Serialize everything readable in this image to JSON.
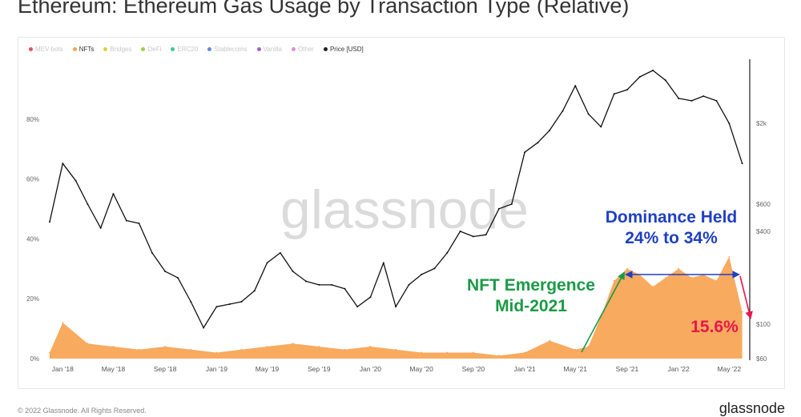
{
  "title": "Ethereum: Ethereum Gas Usage by Transaction Type (Relative)",
  "legend": [
    {
      "label": "MEV-bots",
      "color": "#e05560",
      "active": false
    },
    {
      "label": "NFTs",
      "color": "#f7a351",
      "active": true
    },
    {
      "label": "Bridges",
      "color": "#e8cc3c",
      "active": false
    },
    {
      "label": "DeFi",
      "color": "#9ad04a",
      "active": false
    },
    {
      "label": "ERC20",
      "color": "#3ec98a",
      "active": false
    },
    {
      "label": "Stablecoins",
      "color": "#5b8de0",
      "active": false
    },
    {
      "label": "Vanilla",
      "color": "#a55fd6",
      "active": false
    },
    {
      "label": "Other",
      "color": "#e58be0",
      "active": false
    },
    {
      "label": "Price [USD]",
      "color": "#222222",
      "active": true
    }
  ],
  "watermark": "glassnode",
  "annotations": {
    "emergence_line1": "NFT Emergence",
    "emergence_line2": "Mid-2021",
    "dominance_line1": "Dominance Held",
    "dominance_line2": "24% to 34%",
    "drop_value": "15.6%"
  },
  "colors": {
    "nft_fill": "#f7a351",
    "price_line": "#111111",
    "emergence_green": "#1a9a45",
    "dominance_blue": "#1f3fc4",
    "drop_red": "#e8164a"
  },
  "footer": {
    "copyright": "© 2022 Glassnode. All Rights Reserved.",
    "brand": "glassnode"
  },
  "chart_data": {
    "type": "area",
    "x_ticks": [
      "Jan '18",
      "May '18",
      "Sep '18",
      "Jan '19",
      "May '19",
      "Sep '19",
      "Jan '20",
      "May '20",
      "Sep '20",
      "Jan '21",
      "May '21",
      "Sep '21",
      "Jan '22",
      "May '22"
    ],
    "y_left_ticks": [
      "0%",
      "20%",
      "40%",
      "60%",
      "80%"
    ],
    "y_left_range": [
      0,
      100
    ],
    "y_right_ticks": [
      "$60",
      "$100",
      "$400",
      "$600",
      "$2k"
    ],
    "y_right_scale": "log",
    "grid": false,
    "legend_position": "top-left",
    "series": [
      {
        "name": "NFTs",
        "axis": "left",
        "unit": "%",
        "x": [
          "2017-12",
          "2018-01",
          "2018-03",
          "2018-05",
          "2018-07",
          "2018-09",
          "2018-11",
          "2019-01",
          "2019-03",
          "2019-05",
          "2019-07",
          "2019-09",
          "2019-11",
          "2020-01",
          "2020-03",
          "2020-05",
          "2020-07",
          "2020-09",
          "2020-11",
          "2021-01",
          "2021-03",
          "2021-05",
          "2021-06",
          "2021-07",
          "2021-08",
          "2021-09",
          "2021-10",
          "2021-11",
          "2021-12",
          "2022-01",
          "2022-02",
          "2022-03",
          "2022-04",
          "2022-05",
          "2022-06"
        ],
        "values": [
          2,
          12,
          5,
          4,
          3,
          4,
          3,
          2,
          3,
          4,
          5,
          4,
          3,
          4,
          3,
          2,
          2,
          2,
          1,
          2,
          6,
          3,
          4,
          14,
          26,
          30,
          28,
          24,
          27,
          30,
          27,
          28,
          26,
          34,
          15.6
        ]
      },
      {
        "name": "Price [USD]",
        "axis": "right",
        "unit": "USD",
        "x": [
          "2017-12",
          "2018-01",
          "2018-02",
          "2018-03",
          "2018-04",
          "2018-05",
          "2018-06",
          "2018-07",
          "2018-08",
          "2018-09",
          "2018-10",
          "2018-11",
          "2018-12",
          "2019-01",
          "2019-02",
          "2019-03",
          "2019-04",
          "2019-05",
          "2019-06",
          "2019-07",
          "2019-08",
          "2019-09",
          "2019-10",
          "2019-11",
          "2019-12",
          "2020-01",
          "2020-02",
          "2020-03",
          "2020-04",
          "2020-05",
          "2020-06",
          "2020-07",
          "2020-08",
          "2020-09",
          "2020-10",
          "2020-11",
          "2020-12",
          "2021-01",
          "2021-02",
          "2021-03",
          "2021-04",
          "2021-05",
          "2021-06",
          "2021-07",
          "2021-08",
          "2021-09",
          "2021-10",
          "2021-11",
          "2021-12",
          "2022-01",
          "2022-02",
          "2022-03",
          "2022-04",
          "2022-05",
          "2022-06"
        ],
        "values": [
          460,
          1100,
          850,
          600,
          420,
          700,
          470,
          450,
          290,
          220,
          200,
          140,
          95,
          130,
          135,
          140,
          165,
          250,
          290,
          220,
          190,
          180,
          180,
          170,
          130,
          150,
          250,
          130,
          180,
          210,
          230,
          290,
          400,
          370,
          380,
          560,
          600,
          1300,
          1500,
          1800,
          2400,
          3500,
          2300,
          1900,
          3100,
          3300,
          4000,
          4400,
          3800,
          2900,
          2800,
          3000,
          2800,
          2000,
          1100
        ]
      }
    ]
  }
}
